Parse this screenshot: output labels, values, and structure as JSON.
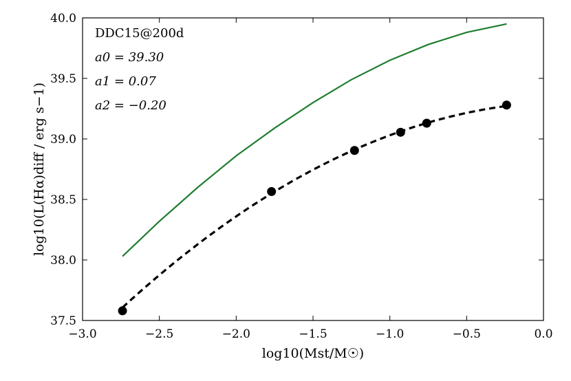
{
  "chart_data": {
    "type": "line",
    "title": "",
    "xlabel": "log10(Mst/M☉)",
    "ylabel": "log10(L(Hα)diff / erg s−1)",
    "xlim": [
      -3.0,
      0.0
    ],
    "ylim": [
      37.5,
      40.0
    ],
    "xticks": [
      -3.0,
      -2.5,
      -2.0,
      -1.5,
      -1.0,
      -0.5,
      0.0
    ],
    "xtick_labels": [
      "−3.0",
      "−2.5",
      "−2.0",
      "−1.5",
      "−1.0",
      "−0.5",
      "0.0"
    ],
    "yticks": [
      37.5,
      38.0,
      38.5,
      39.0,
      39.5,
      40.0
    ],
    "ytick_labels": [
      "37.5",
      "38.0",
      "38.5",
      "39.0",
      "39.5",
      "40.0"
    ],
    "annotations": [
      "DDC15@200d",
      "a0 = 39.30",
      "a1 = 0.07",
      "a2 = −0.20"
    ],
    "series": [
      {
        "name": "model points",
        "style": "scatter",
        "color": "#000000",
        "x": [
          -2.74,
          -1.77,
          -1.23,
          -0.93,
          -0.76,
          -0.24
        ],
        "y": [
          37.58,
          38.565,
          38.905,
          39.055,
          39.13,
          39.28
        ]
      },
      {
        "name": "quadratic fit",
        "style": "dashed",
        "color": "#000000",
        "x_range": [
          -2.74,
          -0.24
        ],
        "coefficients": [
          39.3,
          0.07,
          -0.2
        ]
      },
      {
        "name": "comparison curve",
        "style": "solid",
        "color": "#1e7d2f",
        "x": [
          -2.74,
          -2.5,
          -2.25,
          -2.0,
          -1.75,
          -1.5,
          -1.25,
          -1.0,
          -0.75,
          -0.5,
          -0.24
        ],
        "y": [
          38.03,
          38.32,
          38.6,
          38.86,
          39.09,
          39.3,
          39.49,
          39.65,
          39.78,
          39.88,
          39.95
        ]
      }
    ]
  }
}
